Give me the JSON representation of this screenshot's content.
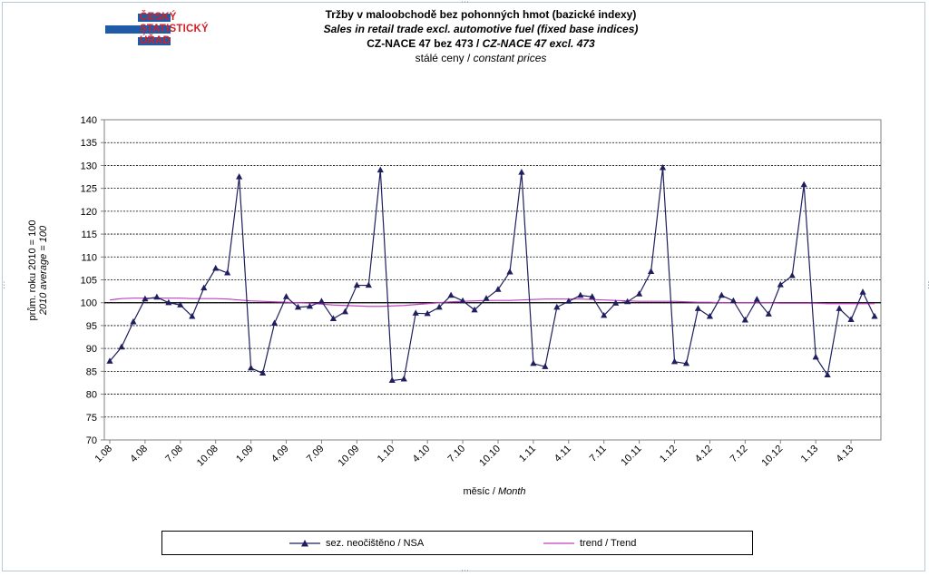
{
  "logo": {
    "lines": [
      "ČESKÝ",
      "STATISTICKÝ",
      "ÚŘAD"
    ],
    "bar_color": "#1f5ba6",
    "text_color": "#d41f26"
  },
  "header": {
    "title_cz": "Tržby v maloobchodě  bez pohonných  hmot  (bazické indexy)",
    "title_en": "Sales in retail trade excl. automotive fuel (fixed base indices)",
    "nace_cz": "CZ-NACE  47 bez 473",
    "nace_sep": " / ",
    "nace_en": "CZ-NACE 47 excl.  473",
    "prices_cz": "stálé  ceny",
    "prices_sep": " / ",
    "prices_en": "constant  prices"
  },
  "chart_data": {
    "type": "line",
    "ylabel_cz": "prům. roku 2010 = 100",
    "ylabel_en": "2010 average = 100",
    "xlabel_cz": "měsíc",
    "xlabel_sep": " / ",
    "xlabel_en": "Month",
    "ylim": [
      70,
      140
    ],
    "ytick_step": 5,
    "grid": true,
    "reference_line": 100,
    "legend_position": "bottom",
    "x": [
      "1.08",
      "2.08",
      "3.08",
      "4.08",
      "5.08",
      "6.08",
      "7.08",
      "8.08",
      "9.08",
      "10.08",
      "11.08",
      "12.08",
      "1.09",
      "2.09",
      "3.09",
      "4.09",
      "5.09",
      "6.09",
      "7.09",
      "8.09",
      "9.09",
      "10.09",
      "11.09",
      "12.09",
      "1.10",
      "2.10",
      "3.10",
      "4.10",
      "5.10",
      "6.10",
      "7.10",
      "8.10",
      "9.10",
      "10.10",
      "11.10",
      "12.10",
      "1.11",
      "2.11",
      "3.11",
      "4.11",
      "5.11",
      "6.11",
      "7.11",
      "8.11",
      "9.11",
      "10.11",
      "11.11",
      "12.11",
      "1.12",
      "2.12",
      "3.12",
      "4.12",
      "5.12",
      "6.12",
      "7.12",
      "8.12",
      "9.12",
      "10.12",
      "11.12",
      "12.12",
      "1.13",
      "2.13",
      "3.13",
      "4.13",
      "5.13",
      "6.13"
    ],
    "tick_labels": [
      "1.08",
      "4.08",
      "7.08",
      "10.08",
      "1.09",
      "4.09",
      "7.09",
      "10.09",
      "1.10",
      "4.10",
      "7.10",
      "10.10",
      "1.11",
      "4.11",
      "7.11",
      "10.11",
      "1.12",
      "4.12",
      "7.12",
      "10.12",
      "1.13",
      "4.13"
    ],
    "series": [
      {
        "name": "sez. neočištěno / NSA",
        "color": "#1f1f5f",
        "marker": "triangle",
        "values": [
          87.2,
          90.3,
          95.8,
          100.8,
          101.2,
          100.0,
          99.5,
          97.0,
          103.2,
          107.5,
          106.5,
          127.5,
          85.7,
          84.6,
          95.5,
          101.3,
          99.0,
          99.2,
          100.3,
          96.5,
          98.0,
          103.8,
          103.8,
          129.0,
          83.0,
          83.3,
          97.7,
          97.6,
          99.0,
          101.6,
          100.4,
          98.4,
          100.9,
          102.9,
          106.7,
          128.5,
          86.7,
          86.0,
          99.0,
          100.3,
          101.6,
          101.3,
          97.2,
          99.9,
          100.2,
          101.9,
          106.8,
          129.5,
          87.1,
          86.7,
          98.7,
          97.0,
          101.6,
          100.4,
          96.2,
          100.7,
          97.5,
          103.9,
          105.9,
          125.8,
          88.1,
          84.2,
          98.7,
          96.3,
          102.3,
          97.0
        ]
      },
      {
        "name": "trend / Trend",
        "color": "#c040c0",
        "values": [
          100.6,
          100.9,
          101.0,
          101.0,
          101.0,
          101.0,
          101.0,
          100.9,
          100.9,
          100.9,
          100.8,
          100.6,
          100.4,
          100.3,
          100.2,
          100.1,
          100.0,
          99.9,
          99.7,
          99.5,
          99.4,
          99.3,
          99.2,
          99.2,
          99.3,
          99.4,
          99.6,
          99.8,
          100.0,
          100.2,
          100.3,
          100.4,
          100.5,
          100.5,
          100.5,
          100.6,
          100.7,
          100.8,
          100.8,
          100.8,
          100.8,
          100.7,
          100.6,
          100.5,
          100.4,
          100.3,
          100.3,
          100.3,
          100.3,
          100.2,
          100.1,
          100.1,
          100.0,
          100.0,
          100.0,
          100.0,
          100.0,
          99.9,
          99.9,
          99.9,
          99.9,
          99.8,
          99.8,
          99.8,
          99.8,
          99.8
        ]
      }
    ]
  }
}
